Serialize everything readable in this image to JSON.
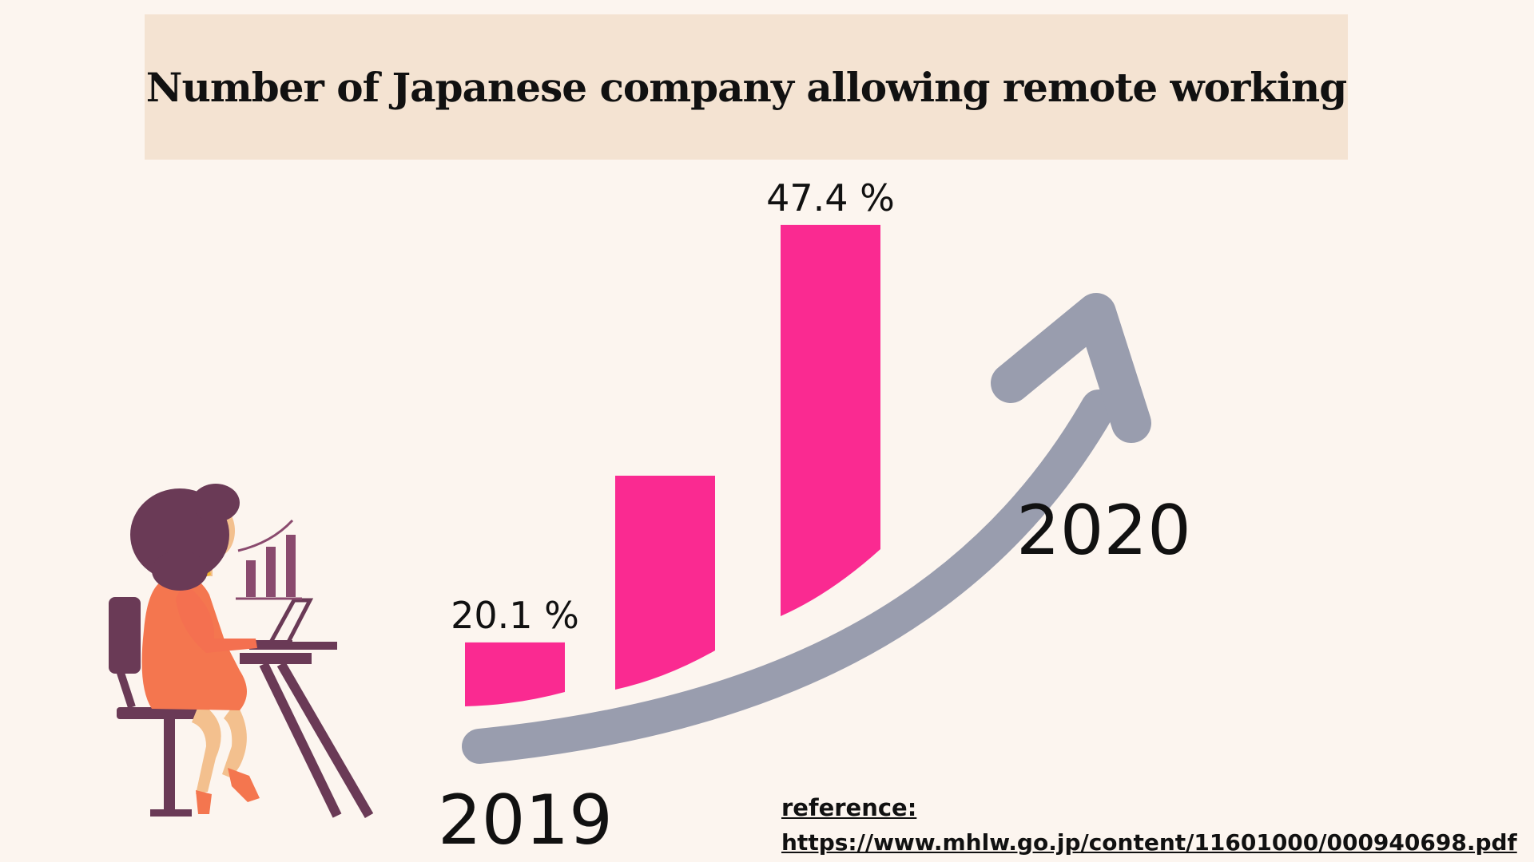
{
  "title": "Number of Japanese company allowing remote working",
  "chart_data": {
    "type": "bar",
    "title": "Number of Japanese company allowing remote working",
    "categories": [
      "2019",
      "",
      "2020"
    ],
    "values": [
      20.1,
      31,
      47.4
    ],
    "data_labels": [
      "20.1 %",
      "",
      "47.4 %"
    ],
    "x_start_label": "2019",
    "x_end_label": "2020",
    "ylim": [
      0,
      50
    ],
    "grid": false,
    "bar_color": "#fa2a91",
    "arrow_color": "#999dae"
  },
  "reference": {
    "label": "reference:",
    "url": " https://www.mhlw.go.jp/content/11601000/000940698.pdf"
  },
  "illustration": {
    "icon": "woman-working-at-laptop-icon",
    "colors": {
      "hair": "#6a3a56",
      "dress": "#f4764f",
      "skin": "#f3c08e",
      "furniture": "#6a3a56"
    }
  }
}
